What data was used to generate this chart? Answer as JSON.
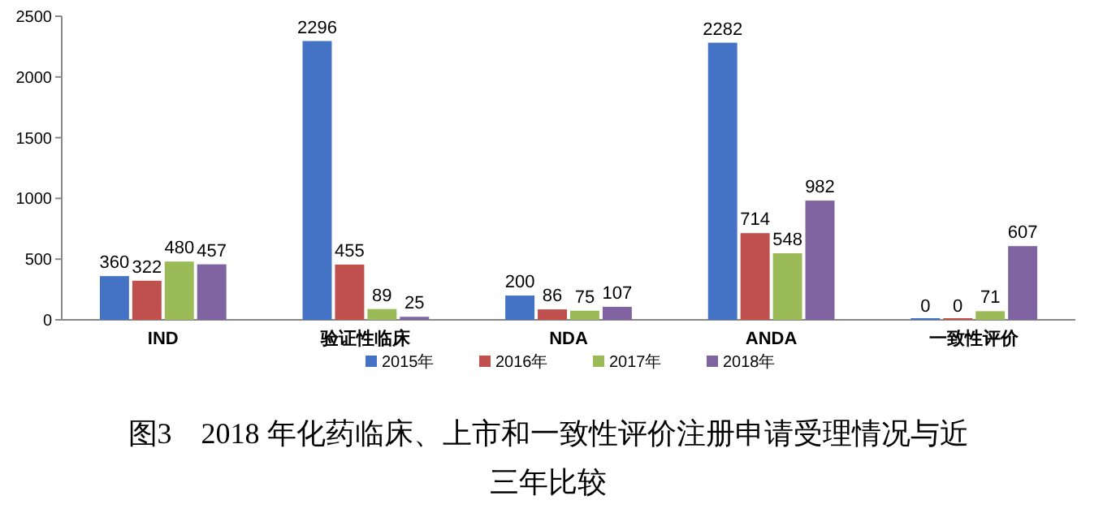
{
  "chart_data": {
    "type": "bar",
    "title": "图3　2018 年化药临床、上市和一致性评价注册申请受理情况与近三年比较",
    "categories": [
      "IND",
      "验证性临床",
      "NDA",
      "ANDA",
      "一致性评价"
    ],
    "series": [
      {
        "name": "2015年",
        "color": "#4472c4",
        "values": [
          360,
          2296,
          200,
          2282,
          0
        ]
      },
      {
        "name": "2016年",
        "color": "#c0504d",
        "values": [
          322,
          455,
          86,
          714,
          0
        ]
      },
      {
        "name": "2017年",
        "color": "#9bbb59",
        "values": [
          480,
          89,
          75,
          548,
          71
        ]
      },
      {
        "name": "2018年",
        "color": "#8064a2",
        "values": [
          457,
          25,
          107,
          982,
          607
        ]
      }
    ],
    "ylim": [
      0,
      2500
    ],
    "yticks": [
      0,
      500,
      1000,
      1500,
      2000,
      2500
    ],
    "data_labels": true,
    "legend": "bottom"
  }
}
